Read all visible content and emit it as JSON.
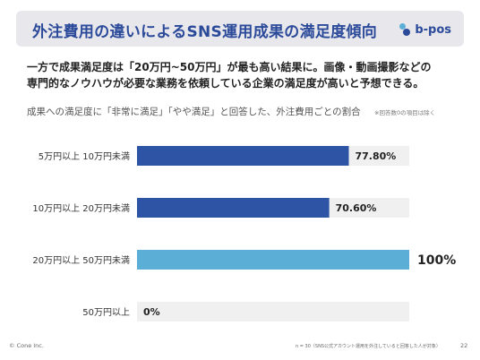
{
  "header": {
    "title": "外注費用の違いによるSNS運用成果の満足度傾向"
  },
  "logo": {
    "text": "b-pos"
  },
  "lead": {
    "line1": "一方で成果満足度は「20万円~50万円」が最も高い結果に。画像・動画撮影などの",
    "line2": "専門的なノウハウが必要な業務を依頼している企業の満足度が高いと予想できる。"
  },
  "subtitle": {
    "text": "成果への満足度に「非常に満足」「やや満足」と回答した、外注費用ごとの割合",
    "note": "※回答数0の項目は除く"
  },
  "colors": {
    "bar_default": "#2e55a5",
    "bar_highlight": "#5baed6",
    "track": "#f0f0f0",
    "title": "#2c4a9a"
  },
  "chart_data": {
    "type": "bar",
    "orientation": "horizontal",
    "categories": [
      "5万円以上 10万円未満",
      "10万円以上 20万円未満",
      "20万円以上 50万円未満",
      "50万円以上"
    ],
    "values": [
      77.8,
      70.6,
      100,
      0
    ],
    "value_labels": [
      "77.80%",
      "70.60%",
      "100%",
      "0%"
    ],
    "highlight_index": 2,
    "xlim": [
      0,
      100
    ],
    "title": "",
    "xlabel": "",
    "ylabel": "",
    "grid": false,
    "legend": "none"
  },
  "footer": {
    "copyright": "© Cone Inc.",
    "note": "n = 30（SNS公式アカウント運用を外注していると回答した人が対象）",
    "page": "22"
  }
}
